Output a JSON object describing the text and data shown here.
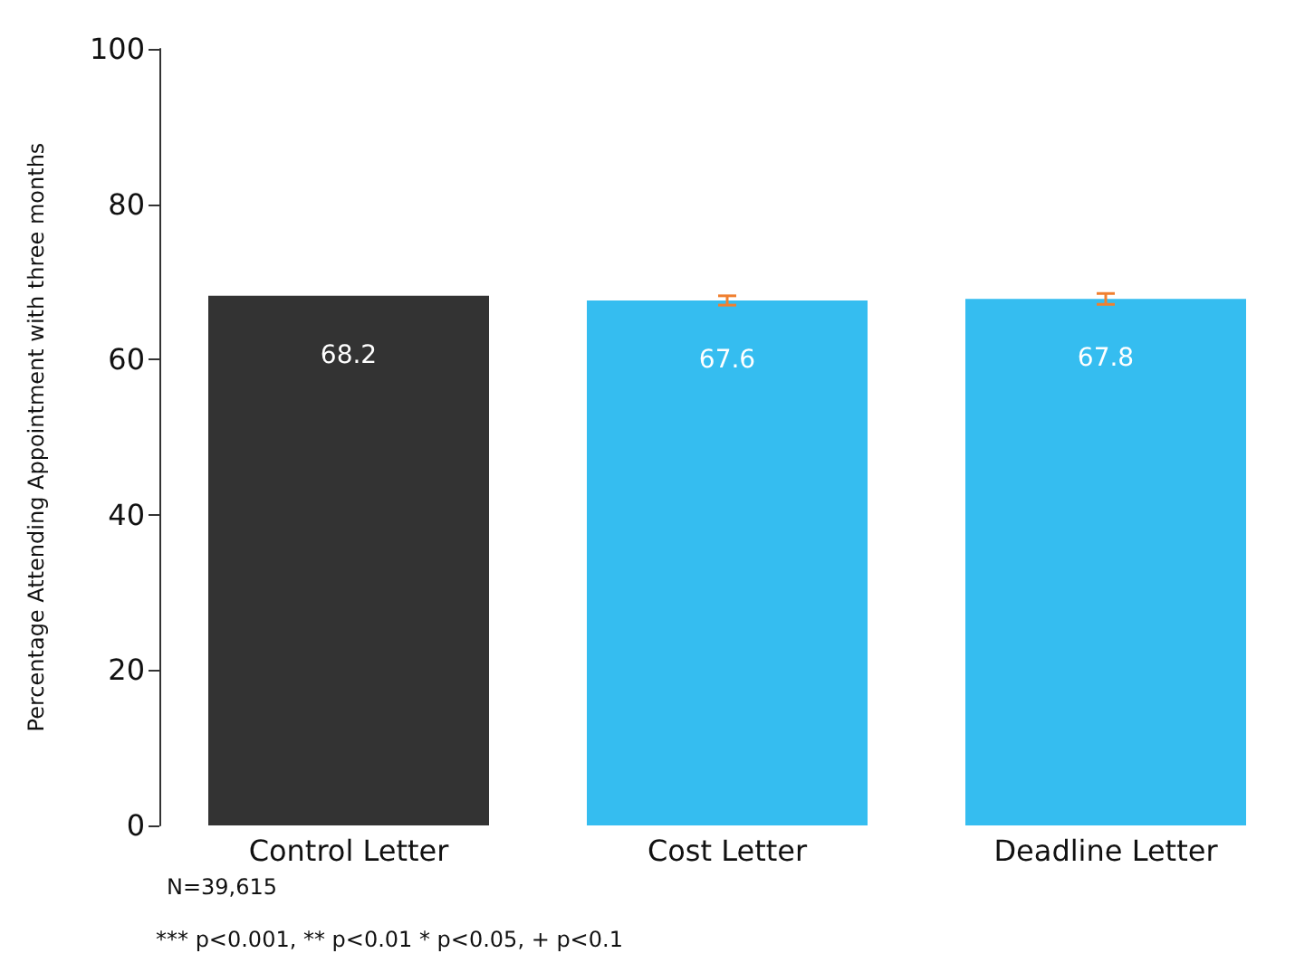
{
  "chart_data": {
    "type": "bar",
    "ylabel": "Percentage Attending Appointment with three months",
    "categories": [
      "Control Letter",
      "Cost Letter",
      "Deadline Letter"
    ],
    "values": [
      68.2,
      67.6,
      67.8
    ],
    "colors": [
      "#333333",
      "#35bdf0",
      "#35bdf0"
    ],
    "errors": [
      null,
      0.6,
      0.7
    ],
    "data_labels": true,
    "ylim": [
      0,
      100
    ],
    "yticks": [
      0,
      20,
      40,
      60,
      80,
      100
    ],
    "grid": false,
    "annotations": [
      "N=39,615",
      "*** p<0.001, ** p<0.01 * p<0.05, + p<0.1"
    ]
  }
}
